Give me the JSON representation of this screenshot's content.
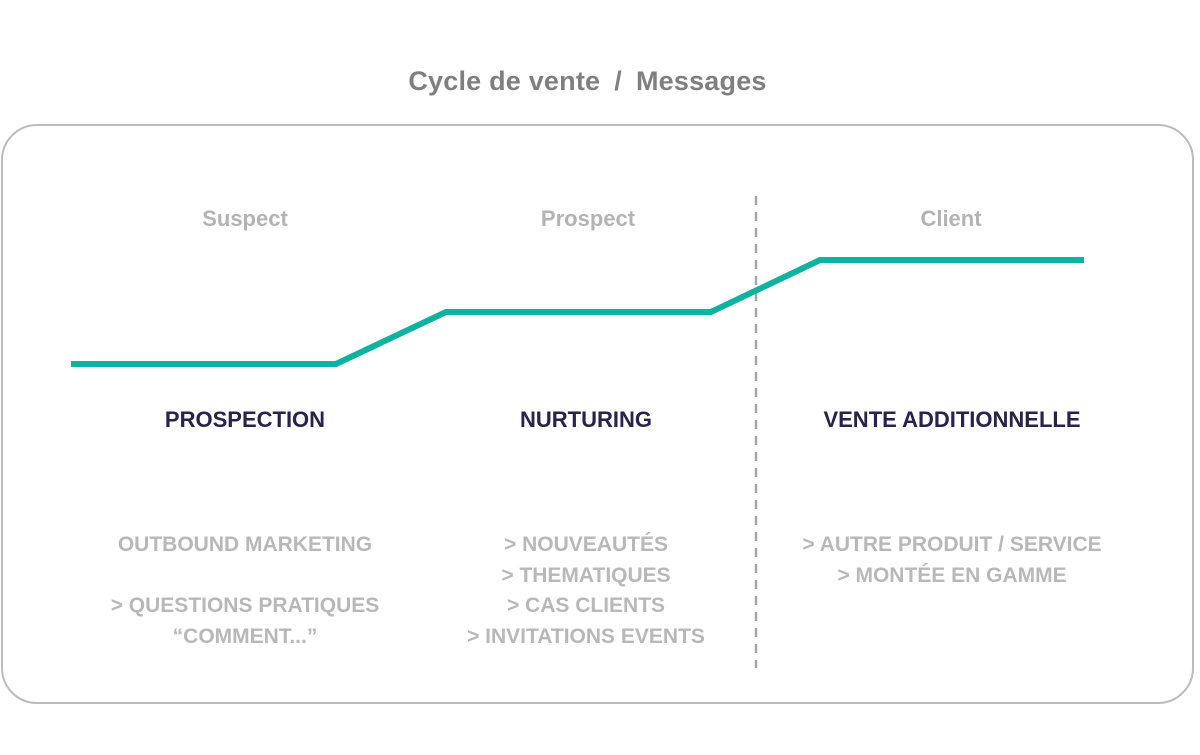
{
  "title": {
    "left": "Cycle de vente",
    "separator": "/",
    "right": "Messages"
  },
  "stages": [
    {
      "label": "Suspect",
      "phase": "PROSPECTION"
    },
    {
      "label": "Prospect",
      "phase": "NURTURING"
    },
    {
      "label": "Client",
      "phase": "VENTE ADDITIONNELLE"
    }
  ],
  "messages": {
    "col1": {
      "heading": "OUTBOUND MARKETING",
      "lines": [
        "> QUESTIONS PRATIQUES",
        "“COMMENT...”"
      ]
    },
    "col2": {
      "lines": [
        "> NOUVEAUTÉS",
        "> THEMATIQUES",
        "> CAS CLIENTS",
        "> INVITATIONS EVENTS"
      ]
    },
    "col3": {
      "lines": [
        "> AUTRE PRODUIT / SERVICE",
        "> MONTÉE EN GAMME"
      ]
    }
  },
  "colors": {
    "line": "#0db3a0",
    "divider": "#a6a6a6",
    "title": "#7f7f7f",
    "phase": "#27234a",
    "muted": "#b8b8b8"
  }
}
